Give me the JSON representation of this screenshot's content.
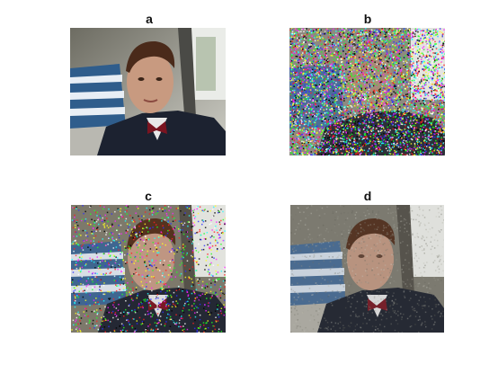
{
  "figure": {
    "panels": [
      {
        "title": "a",
        "image": "clean-car-portrait"
      },
      {
        "title": "b",
        "image": "heavy-colored-noise-car-portrait"
      },
      {
        "title": "c",
        "image": "moderate-impulse-noise-car-portrait"
      },
      {
        "title": "d",
        "image": "denoised-car-portrait"
      }
    ]
  }
}
